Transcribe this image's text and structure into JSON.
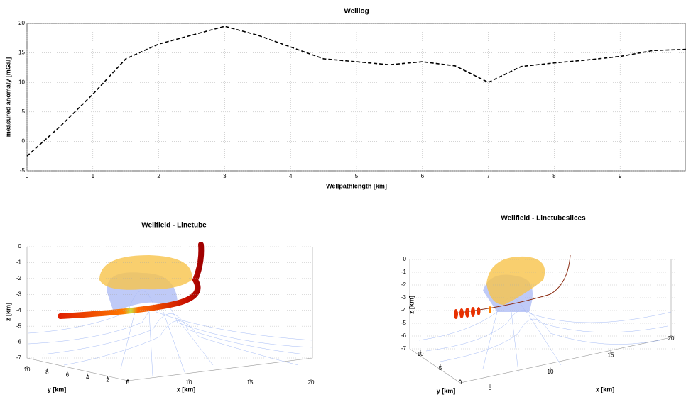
{
  "chart_data": [
    {
      "type": "line",
      "title": "Welllog",
      "xlabel": "Wellpathlength [km]",
      "ylabel": "measured anomaly [mGal]",
      "x": [
        0,
        0.5,
        1,
        1.5,
        2,
        2.5,
        3,
        3.5,
        4,
        4.5,
        5,
        5.5,
        6,
        6.5,
        7,
        7.5,
        8,
        8.5,
        9,
        9.5,
        10
      ],
      "values": [
        -2.5,
        2.5,
        8,
        14,
        16.5,
        18,
        19.5,
        18,
        16,
        14,
        13.5,
        13,
        13.5,
        12.8,
        10,
        12.7,
        13.3,
        13.8,
        14.4,
        15.4,
        15.6
      ],
      "color": "#000000",
      "xlim": [
        0,
        10
      ],
      "ylim": [
        -5,
        20
      ],
      "xticks": [
        0,
        1,
        2,
        3,
        4,
        5,
        6,
        7,
        8,
        9
      ],
      "yticks": [
        -5,
        0,
        5,
        10,
        15,
        20
      ],
      "grid": true
    },
    {
      "type": "surface3d",
      "title": "Wellfield - Linetube",
      "xlabel": "x [km]",
      "ylabel": "y [km]",
      "zlabel": "z [km]",
      "xticks": [
        5,
        10,
        15,
        20
      ],
      "yticks": [
        10,
        8,
        6,
        4,
        2,
        0
      ],
      "zticks": [
        0,
        -1,
        -2,
        -3,
        -4,
        -5,
        -6,
        -7
      ],
      "grid": true
    },
    {
      "type": "surface3d",
      "title": "Wellfield - Linetubeslices",
      "xlabel": "x [km]",
      "ylabel": "y [km]",
      "zlabel": "z [km]",
      "xticks": [
        5,
        10,
        15,
        20
      ],
      "yticks": [
        10,
        5,
        0
      ],
      "zticks": [
        0,
        -1,
        -2,
        -3,
        -4,
        -5,
        -6,
        -7
      ],
      "grid": true
    }
  ]
}
